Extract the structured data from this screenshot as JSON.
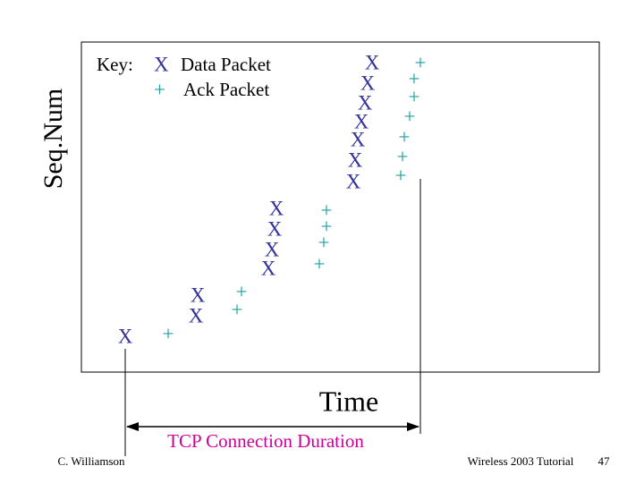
{
  "key": {
    "label": "Key:",
    "data_symbol": "X",
    "data_label": "Data Packet",
    "ack_symbol": "+",
    "ack_label": "Ack Packet"
  },
  "axes": {
    "y_label": "Seq.Num",
    "x_label": "Time"
  },
  "data_packets": [
    "X",
    "X",
    "X",
    "X",
    "X",
    "X",
    "X",
    "X",
    "X",
    "X",
    "X",
    "X",
    "X",
    "X"
  ],
  "ack_packets": [
    "+",
    "+",
    "+",
    "+",
    "+",
    "+",
    "+",
    "+",
    "+",
    "+",
    "+",
    "+",
    "+",
    "+"
  ],
  "annotation": "TCP Connection Duration",
  "footer": {
    "author": "C. Williamson",
    "event": "Wireless 2003 Tutorial",
    "page": "47"
  }
}
